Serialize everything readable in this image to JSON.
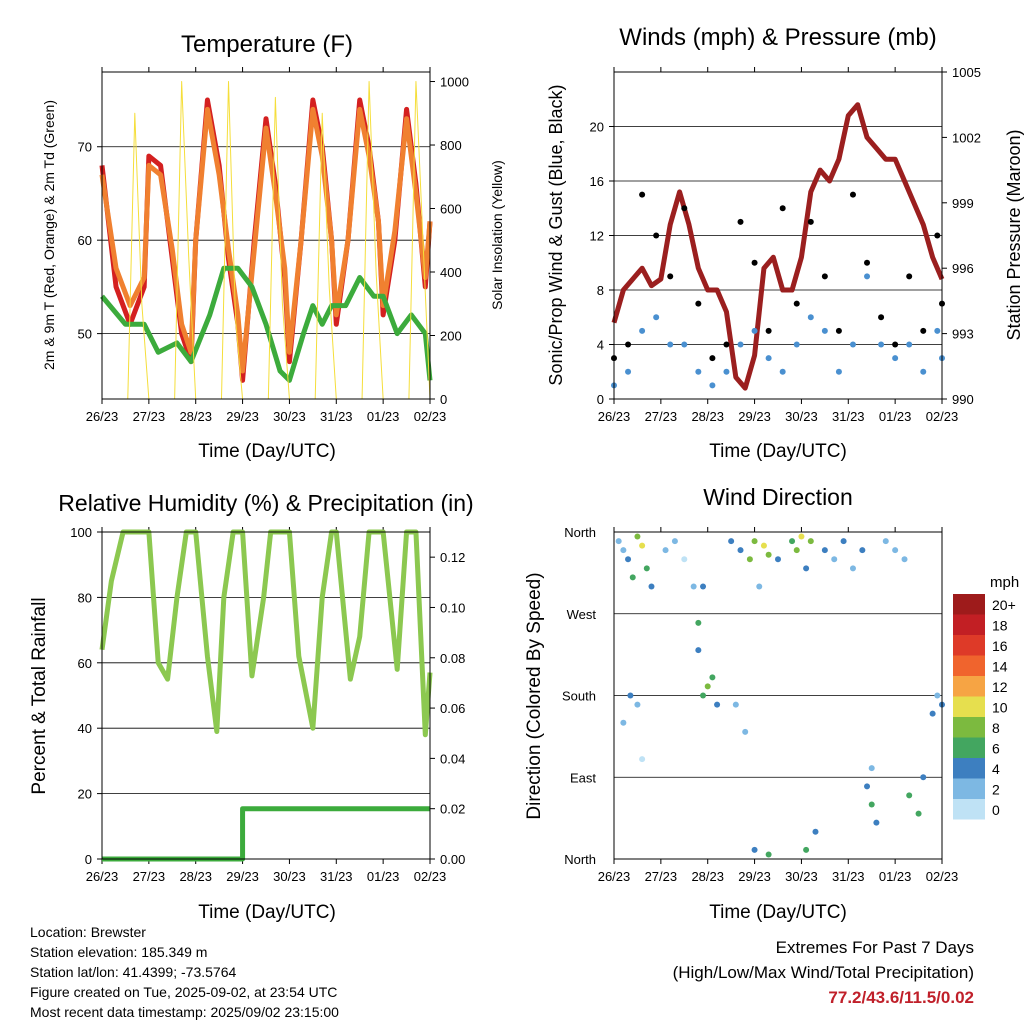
{
  "time_ticks": [
    "26/23",
    "27/23",
    "28/23",
    "29/23",
    "30/23",
    "31/23",
    "01/23",
    "02/23"
  ],
  "chart_data": [
    {
      "type": "line",
      "title": "Temperature (F)",
      "xlabel": "Time (Day/UTC)",
      "ylabel": "2m & 9m T (Red, Orange) & 2m Td (Green)",
      "y2label": "Solar Insolation (Yellow)",
      "ylim": [
        43,
        78
      ],
      "y2lim": [
        0,
        1030
      ],
      "yticks": [
        50,
        60,
        70
      ],
      "y2ticks": [
        0,
        200,
        400,
        600,
        800,
        1000
      ],
      "series": [
        {
          "color": "#d42020",
          "x": [
            0,
            0.3,
            0.6,
            0.9,
            1.0,
            1.25,
            1.5,
            1.7,
            1.9,
            2.0,
            2.25,
            2.5,
            2.7,
            2.9,
            3.0,
            3.25,
            3.5,
            3.7,
            3.9,
            4.0,
            4.25,
            4.5,
            4.7,
            4.9,
            5.0,
            5.25,
            5.5,
            5.7,
            5.9,
            6.0,
            6.25,
            6.5,
            6.7,
            6.9,
            7.0
          ],
          "values": [
            68,
            55,
            51,
            55,
            69,
            68,
            58,
            50,
            47,
            60,
            75,
            68,
            58,
            51,
            45,
            60,
            73,
            66,
            56,
            47,
            60,
            75,
            70,
            60,
            51,
            60,
            75,
            70,
            62,
            52,
            60,
            74,
            66,
            55,
            62
          ]
        },
        {
          "color": "#f08030",
          "x": [
            0,
            0.3,
            0.6,
            0.9,
            1.0,
            1.25,
            1.5,
            1.7,
            1.9,
            2.0,
            2.25,
            2.5,
            2.7,
            2.9,
            3.0,
            3.25,
            3.5,
            3.7,
            3.9,
            4.0,
            4.25,
            4.5,
            4.7,
            4.9,
            5.0,
            5.25,
            5.5,
            5.7,
            5.9,
            6.0,
            6.25,
            6.5,
            6.7,
            6.9,
            7.0
          ],
          "values": [
            67,
            57,
            53,
            56,
            68,
            67,
            59,
            51,
            48,
            60,
            74,
            67,
            59,
            52,
            46,
            59,
            72,
            65,
            57,
            48,
            60,
            74,
            69,
            60,
            52,
            60,
            74,
            69,
            62,
            53,
            61,
            73,
            65,
            56,
            62
          ]
        },
        {
          "color": "#3cab3c",
          "x": [
            0,
            0.5,
            0.9,
            1.2,
            1.6,
            1.9,
            2.3,
            2.6,
            2.9,
            3.2,
            3.5,
            3.8,
            4.0,
            4.3,
            4.5,
            4.7,
            4.9,
            5.2,
            5.5,
            5.8,
            6.0,
            6.3,
            6.6,
            6.9,
            7.0
          ],
          "values": [
            54,
            51,
            51,
            48,
            49,
            47,
            52,
            57,
            57,
            55,
            51,
            46,
            45,
            50,
            53,
            51,
            53,
            53,
            56,
            54,
            54,
            50,
            52,
            50,
            45
          ]
        },
        {
          "axis": "y2",
          "color": "#f5de3a",
          "x": [
            0,
            0.55,
            0.7,
            0.85,
            1.0,
            1.55,
            1.7,
            1.85,
            2.0,
            2.55,
            2.7,
            2.85,
            3.0,
            3.55,
            3.7,
            3.85,
            4.0,
            4.55,
            4.7,
            4.85,
            5.0,
            5.55,
            5.7,
            5.85,
            6.0,
            6.55,
            6.7,
            6.85,
            7.0
          ],
          "values": [
            0,
            0,
            900,
            300,
            0,
            0,
            1000,
            450,
            0,
            0,
            1000,
            250,
            0,
            0,
            950,
            300,
            0,
            0,
            900,
            350,
            0,
            0,
            1000,
            400,
            0,
            0,
            1000,
            500,
            0
          ]
        }
      ]
    },
    {
      "type": "scatter",
      "title": "Winds (mph) & Pressure (mb)",
      "xlabel": "Time (Day/UTC)",
      "ylabel": "Sonic/Prop Wind & Gust (Blue, Black)",
      "y2label": "Station Pressure (Maroon)",
      "ylim": [
        0,
        24
      ],
      "y2lim": [
        990,
        1005
      ],
      "yticks": [
        0,
        4,
        8,
        12,
        16,
        20
      ],
      "y2ticks": [
        990,
        993,
        996,
        999,
        1002,
        1005
      ],
      "series": [
        {
          "axis": "y2",
          "color": "#9b1f1f",
          "x": [
            0,
            0.2,
            0.4,
            0.6,
            0.8,
            1.0,
            1.2,
            1.4,
            1.6,
            1.8,
            2.0,
            2.2,
            2.4,
            2.6,
            2.8,
            3.0,
            3.2,
            3.4,
            3.6,
            3.8,
            4.0,
            4.2,
            4.4,
            4.6,
            4.8,
            5.0,
            5.2,
            5.4,
            5.6,
            5.8,
            6.0,
            6.2,
            6.4,
            6.6,
            6.8,
            7.0
          ],
          "values": [
            993.5,
            995,
            995.5,
            996,
            995.2,
            995.5,
            998,
            999.5,
            998,
            996,
            995,
            995,
            994,
            991,
            990.5,
            992,
            996,
            996.5,
            995,
            995,
            996.5,
            999.5,
            1000.5,
            1000,
            1001,
            1003,
            1003.5,
            1002,
            1001.5,
            1001,
            1001,
            1000,
            999,
            998,
            996.5,
            995.5
          ]
        },
        {
          "color": "#4a90d0",
          "x": [
            0,
            0.3,
            0.6,
            0.9,
            1.2,
            1.5,
            1.8,
            2.1,
            2.4,
            2.7,
            3.0,
            3.3,
            3.6,
            3.9,
            4.2,
            4.5,
            4.8,
            5.1,
            5.4,
            5.7,
            6.0,
            6.3,
            6.6,
            6.9,
            7.0
          ],
          "values": [
            1,
            2,
            5,
            6,
            4,
            4,
            2,
            1,
            2,
            4,
            5,
            3,
            2,
            4,
            6,
            5,
            2,
            4,
            9,
            4,
            3,
            4,
            2,
            5,
            3
          ]
        },
        {
          "color": "#000000",
          "x": [
            0,
            0.3,
            0.6,
            0.9,
            1.2,
            1.5,
            1.8,
            2.1,
            2.4,
            2.7,
            3.0,
            3.3,
            3.6,
            3.9,
            4.2,
            4.5,
            4.8,
            5.1,
            5.4,
            5.7,
            6.0,
            6.3,
            6.6,
            6.9,
            7.0
          ],
          "values": [
            3,
            4,
            15,
            12,
            9,
            14,
            7,
            3,
            4,
            13,
            10,
            5,
            14,
            7,
            13,
            9,
            5,
            15,
            10,
            6,
            4,
            9,
            5,
            12,
            7
          ]
        }
      ]
    },
    {
      "type": "line",
      "title": "Relative Humidity (%) & Precipitation (in)",
      "xlabel": "Time (Day/UTC)",
      "ylabel": "Percent & Total Rainfall",
      "ylim": [
        0,
        100
      ],
      "y2lim": [
        0,
        0.13
      ],
      "yticks": [
        0,
        20,
        40,
        60,
        80,
        100
      ],
      "y2ticks": [
        "0.00",
        "0.02",
        "0.04",
        "0.06",
        "0.08",
        "0.10",
        "0.12"
      ],
      "series": [
        {
          "color": "#8cc850",
          "x": [
            0,
            0.2,
            0.45,
            0.6,
            0.75,
            1.0,
            1.2,
            1.4,
            1.6,
            1.8,
            2.0,
            2.25,
            2.45,
            2.6,
            2.8,
            3.0,
            3.2,
            3.45,
            3.6,
            3.8,
            4.0,
            4.2,
            4.5,
            4.7,
            4.9,
            5.0,
            5.3,
            5.5,
            5.7,
            5.9,
            6.0,
            6.3,
            6.5,
            6.7,
            6.9,
            7.0
          ],
          "values": [
            64,
            85,
            100,
            100,
            100,
            100,
            60,
            55,
            80,
            100,
            100,
            62,
            39,
            80,
            100,
            100,
            56,
            80,
            100,
            100,
            100,
            62,
            40,
            80,
            100,
            100,
            55,
            68,
            100,
            100,
            100,
            58,
            100,
            100,
            38,
            57
          ]
        },
        {
          "axis": "y2",
          "color": "#3cab3c",
          "x": [
            0,
            0.5,
            1.0,
            1.5,
            2.0,
            2.5,
            3.0,
            3.0,
            3.5,
            4.0,
            4.5,
            5.0,
            5.5,
            6.0,
            6.5,
            7.0
          ],
          "values": [
            0,
            0,
            0,
            0,
            0,
            0,
            0,
            0.02,
            0.02,
            0.02,
            0.02,
            0.02,
            0.02,
            0.02,
            0.02,
            0.02
          ]
        }
      ]
    },
    {
      "type": "scatter",
      "title": "Wind Direction",
      "xlabel": "Time (Day/UTC)",
      "ylabel": "Direction (Colored By Speed)",
      "ylim": [
        0,
        360
      ],
      "yticklabels": [
        "North",
        "East",
        "South",
        "West",
        "North"
      ],
      "colorbar_title": "mph",
      "colorbar": [
        {
          "label": "20+",
          "color": "#9e1b1b"
        },
        {
          "label": "18",
          "color": "#c21f24"
        },
        {
          "label": "16",
          "color": "#de3a28"
        },
        {
          "label": "14",
          "color": "#f0642d"
        },
        {
          "label": "12",
          "color": "#f6a444"
        },
        {
          "label": "10",
          "color": "#e6df4e"
        },
        {
          "label": "8",
          "color": "#7cba3f"
        },
        {
          "label": "6",
          "color": "#43a660"
        },
        {
          "label": "4",
          "color": "#3d7fc0"
        },
        {
          "label": "2",
          "color": "#7db8e3"
        },
        {
          "label": "0",
          "color": "#bfe2f5"
        }
      ],
      "points": [
        [
          0.1,
          350,
          2
        ],
        [
          0.2,
          340,
          1
        ],
        [
          0.3,
          330,
          3
        ],
        [
          0.4,
          310,
          6
        ],
        [
          0.5,
          355,
          8
        ],
        [
          0.6,
          345,
          10
        ],
        [
          0.7,
          320,
          6
        ],
        [
          0.8,
          300,
          3
        ],
        [
          0.35,
          180,
          3
        ],
        [
          0.5,
          170,
          2
        ],
        [
          0.2,
          150,
          1
        ],
        [
          0.6,
          110,
          0
        ],
        [
          1.1,
          340,
          2
        ],
        [
          1.3,
          350,
          1
        ],
        [
          1.5,
          330,
          0
        ],
        [
          1.7,
          300,
          1
        ],
        [
          1.8,
          230,
          4
        ],
        [
          1.9,
          180,
          6
        ],
        [
          2.0,
          190,
          8
        ],
        [
          2.1,
          200,
          6
        ],
        [
          2.2,
          170,
          4
        ],
        [
          1.9,
          300,
          3
        ],
        [
          1.8,
          260,
          5
        ],
        [
          2.5,
          350,
          3
        ],
        [
          2.7,
          340,
          4
        ],
        [
          2.9,
          330,
          8
        ],
        [
          3.0,
          350,
          8
        ],
        [
          3.2,
          345,
          10
        ],
        [
          3.3,
          335,
          8
        ],
        [
          3.1,
          300,
          2
        ],
        [
          2.6,
          170,
          1
        ],
        [
          2.8,
          140,
          2
        ],
        [
          3.0,
          10,
          4
        ],
        [
          3.3,
          5,
          6
        ],
        [
          3.5,
          330,
          4
        ],
        [
          3.8,
          350,
          6
        ],
        [
          3.9,
          340,
          8
        ],
        [
          4.0,
          355,
          10
        ],
        [
          4.2,
          350,
          8
        ],
        [
          4.1,
          320,
          4
        ],
        [
          4.3,
          30,
          4
        ],
        [
          4.1,
          10,
          6
        ],
        [
          4.5,
          340,
          3
        ],
        [
          4.7,
          330,
          2
        ],
        [
          4.9,
          350,
          4
        ],
        [
          5.1,
          320,
          2
        ],
        [
          5.3,
          340,
          3
        ],
        [
          5.4,
          80,
          4
        ],
        [
          5.5,
          60,
          6
        ],
        [
          5.6,
          40,
          4
        ],
        [
          5.5,
          100,
          2
        ],
        [
          5.8,
          350,
          2
        ],
        [
          6.0,
          340,
          1
        ],
        [
          6.2,
          330,
          2
        ],
        [
          6.3,
          70,
          6
        ],
        [
          6.5,
          50,
          6
        ],
        [
          6.6,
          90,
          4
        ],
        [
          6.8,
          160,
          4
        ],
        [
          6.9,
          180,
          2
        ],
        [
          7.0,
          170,
          4
        ]
      ]
    }
  ],
  "meta": {
    "location": "Location: Brewster",
    "elevation": "Station elevation: 185.349 m",
    "latlon": "Station lat/lon: 41.4399; -73.5764",
    "created": "Figure created on Tue, 2025-09-02, at 23:54 UTC",
    "recent": "Most recent data timestamp: 2025/09/02 23:15:00"
  },
  "extremes": {
    "title": "Extremes For Past 7 Days",
    "subtitle": "(High/Low/Max Wind/Total Precipitation)",
    "values": "77.2/43.6/11.5/0.02",
    "values_color": "#c0202a"
  }
}
